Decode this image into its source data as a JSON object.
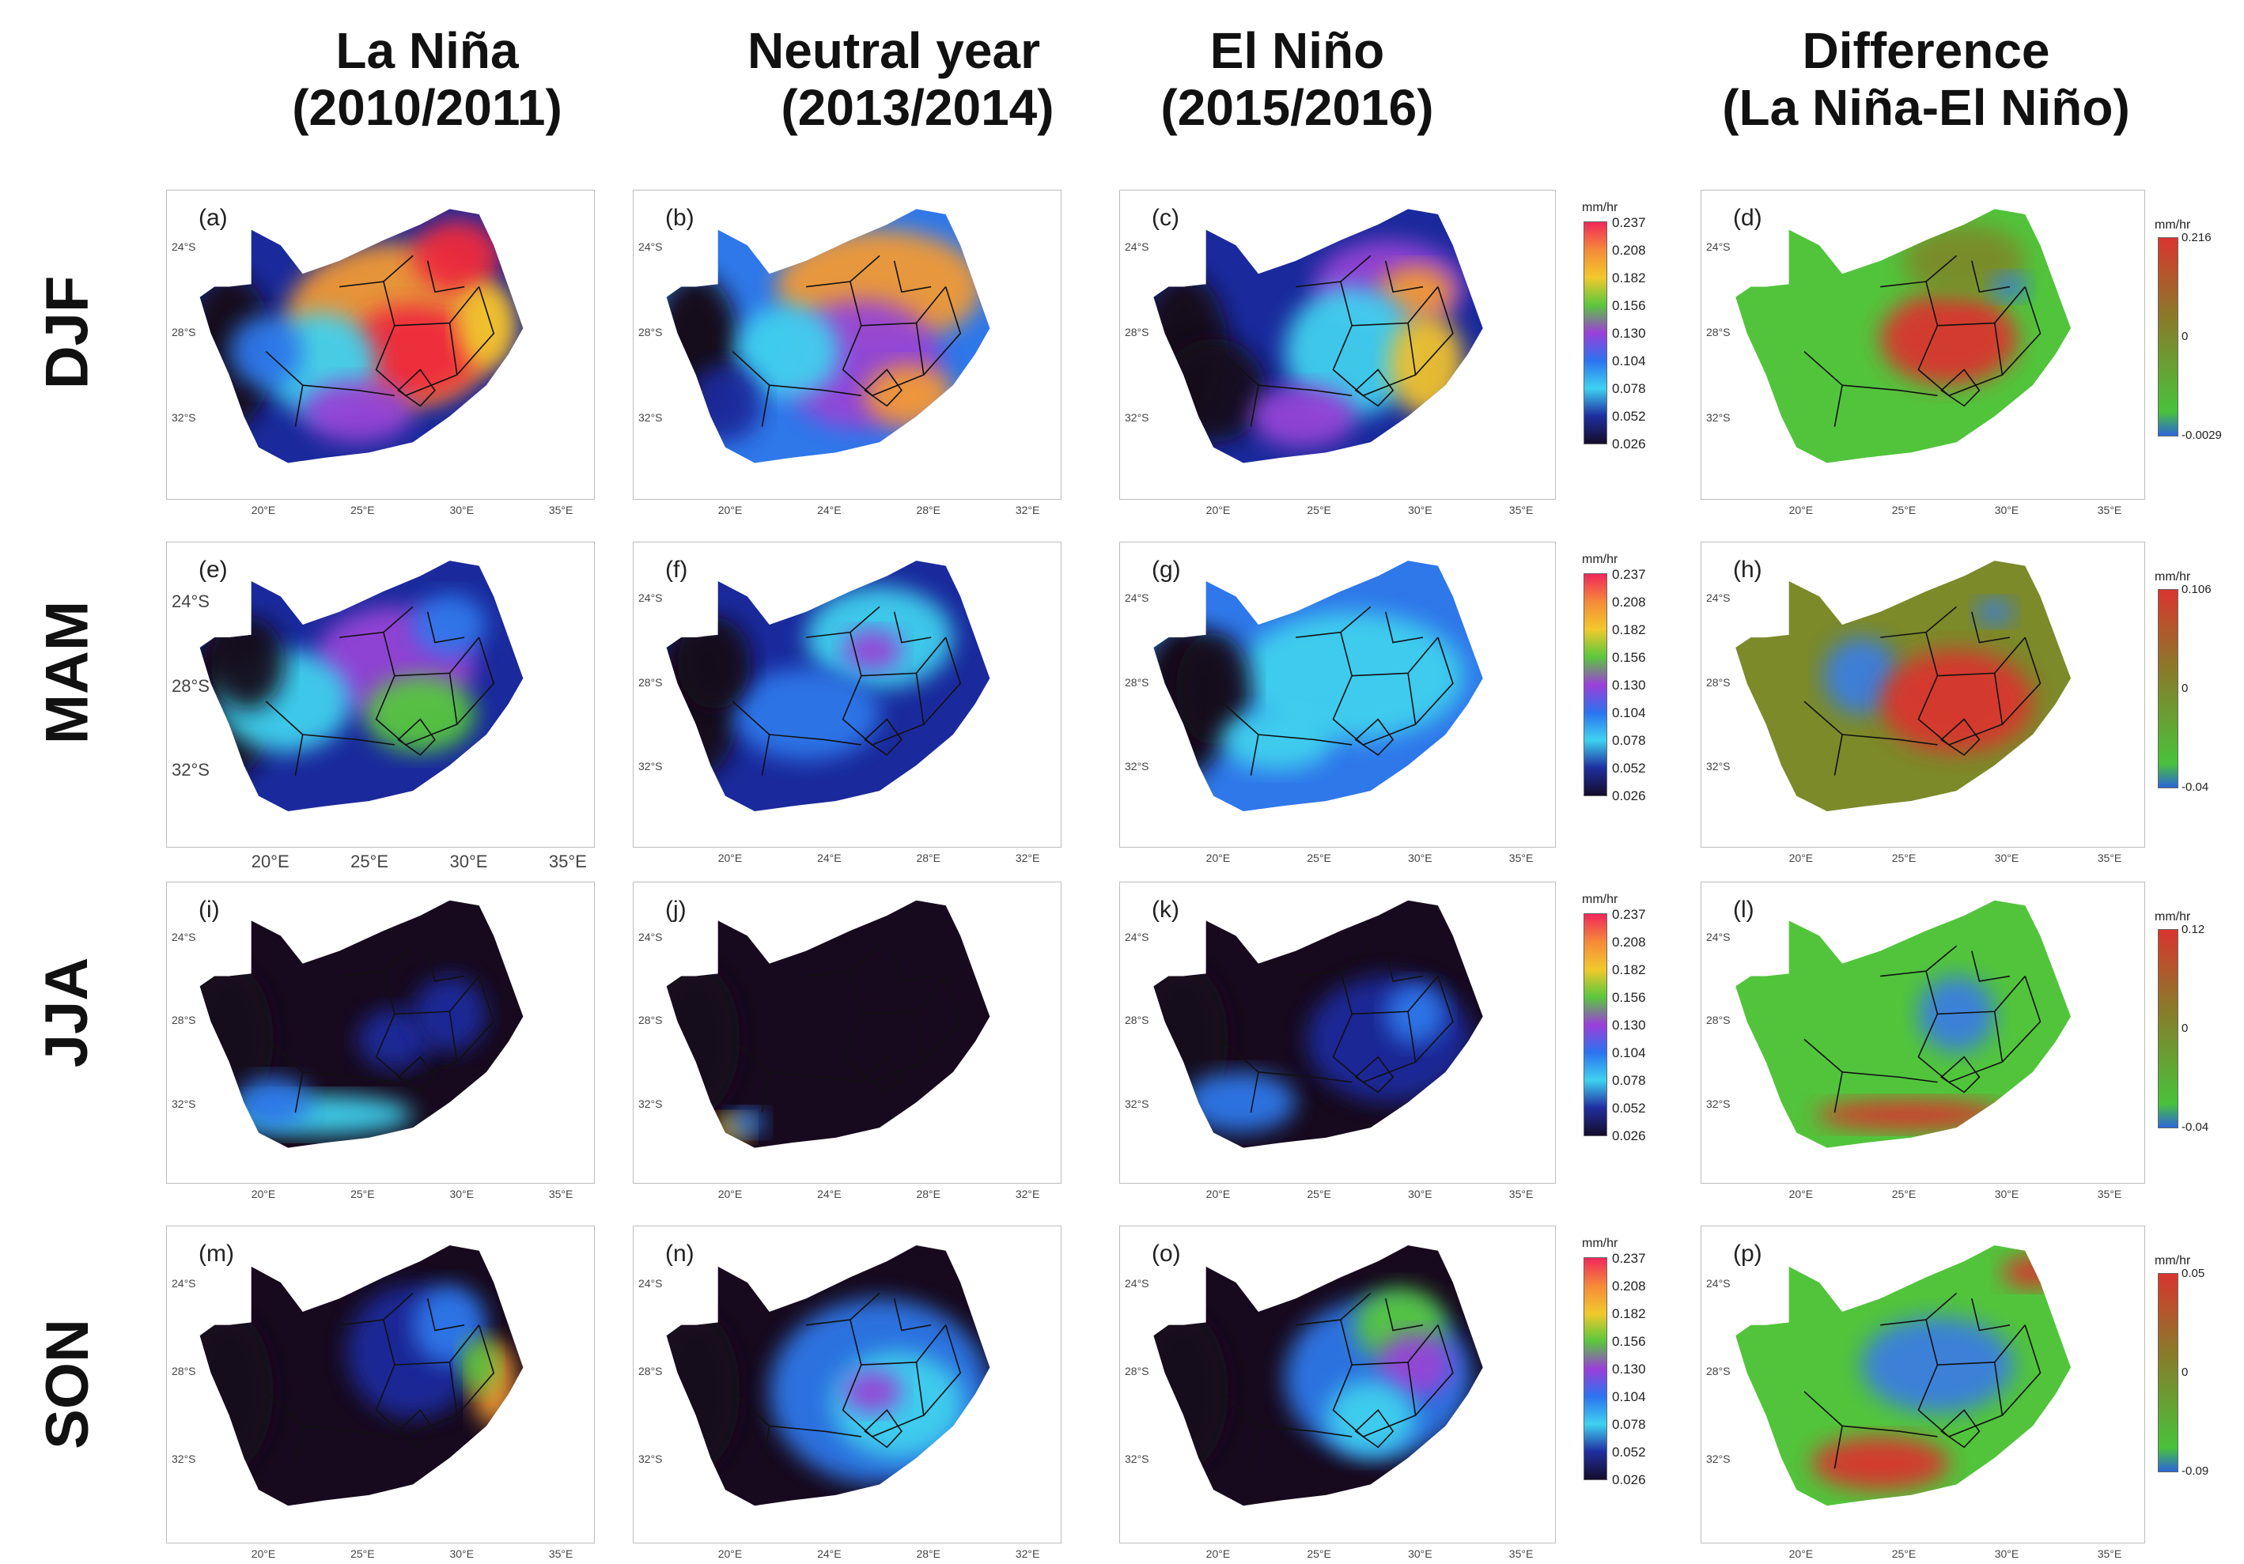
{
  "columns": [
    {
      "line1": "La Niña",
      "line2": "(2010/2011)"
    },
    {
      "line1": "Neutral year",
      "line2": "(2013/2014)"
    },
    {
      "line1": "El Niño",
      "line2": "(2015/2016)"
    },
    {
      "line1": "Difference",
      "line2": "(La Niña-El Niño)"
    }
  ],
  "rows": [
    {
      "label": "DJF",
      "panels": [
        "(a)",
        "(b)",
        "(c)",
        "(d)"
      ]
    },
    {
      "label": "MAM",
      "panels": [
        "(e)",
        "(f)",
        "(g)",
        "(h)"
      ]
    },
    {
      "label": "JJA",
      "panels": [
        "(i)",
        "(j)",
        "(k)",
        "(l)"
      ]
    },
    {
      "label": "SON",
      "panels": [
        "(m)",
        "(n)",
        "(o)",
        "(p)"
      ]
    }
  ],
  "lat_ticks": [
    "24°S",
    "28°S",
    "32°S"
  ],
  "lon_ticks": [
    "20°E",
    "25°E",
    "30°E",
    "35°E"
  ],
  "lon_ticks_alt": [
    "20°E",
    "24°E",
    "28°E",
    "32°E"
  ],
  "colorbar_main": {
    "unit": "mm/hr",
    "labels": [
      "0.237",
      "0.208",
      "0.182",
      "0.156",
      "0.130",
      "0.104",
      "0.078",
      "0.052",
      "0.026"
    ],
    "colors": [
      "#f0285a",
      "#f58a3a",
      "#f2c92c",
      "#5ac83c",
      "#9b3fd8",
      "#2b73f0",
      "#3fd2f0",
      "#1f2fa0",
      "#150d2a"
    ]
  },
  "colorbar_diff": [
    {
      "unit": "mm/hr",
      "labels": [
        "0.216",
        "0",
        "-0.0029"
      ]
    },
    {
      "unit": "mm/hr",
      "labels": [
        "0.106",
        "0",
        "-0.04"
      ]
    },
    {
      "unit": "mm/hr",
      "labels": [
        "0.12",
        "0",
        "-0.04"
      ]
    },
    {
      "unit": "mm/hr",
      "labels": [
        "0.05",
        "0",
        "-0.09"
      ]
    }
  ],
  "colors": {
    "dry": "#170a1e",
    "low": "#1a2a9c",
    "mid_low": "#2f78ea",
    "mid": "#3fd0ee",
    "purple": "#9644d6",
    "green": "#57c73e",
    "yellow": "#f0c22e",
    "orange": "#f29a35",
    "red": "#ee2c3c",
    "diff_green": "#52c43c",
    "diff_olive": "#7c8a2a",
    "diff_red": "#d9352e",
    "diff_blue": "#3b7ee0",
    "border": "#111111"
  }
}
